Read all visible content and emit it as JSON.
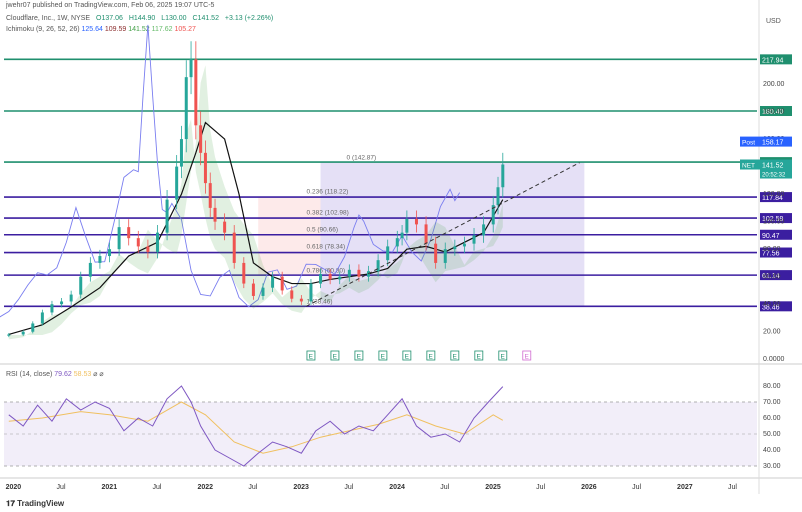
{
  "header": {
    "publisher": "jwehr07 published on TradingView.com, Feb 06, 2025 19:07 UTC-5",
    "symbol": "Cloudflare, Inc., 1W, NYSE",
    "ohlc": [
      "O137.06",
      "H144.90",
      "L130.00",
      "C141.52",
      "+3.13 (+2.26%)"
    ],
    "ichimoku_label": "Ichimoku (9, 26, 52, 26)",
    "ichimoku_values": [
      "125.64",
      "109.59",
      "141.52",
      "117.62",
      "105.27"
    ],
    "rsi_label": "RSI (14, close)",
    "rsi_values": [
      "79.62",
      "58.53",
      "⌀",
      "⌀"
    ],
    "currency": "USD",
    "brand": "TradingView"
  },
  "colors": {
    "up": "#26a69a",
    "down": "#ef5350",
    "purple": "#3b1ea0",
    "teal": "#1f8f6e",
    "black": "#111111",
    "lagging": "#7a7ef0",
    "rsi_line": "#7e57c2",
    "rsi_ma": "#f0c060",
    "post": "#2962ff",
    "net": "#26a69a"
  },
  "chart_data": [
    {
      "type": "line",
      "title": "Cloudflare, Inc., 1W, NYSE",
      "ylabel": "USD",
      "x_ticks": [
        "2020",
        "Jul",
        "2021",
        "Jul",
        "2022",
        "Jul",
        "2023",
        "Jul",
        "2024",
        "Jul",
        "2025",
        "Jul",
        "2026",
        "Jul",
        "2027",
        "Jul"
      ],
      "y_ticks": [
        0,
        20,
        40,
        60,
        80,
        100,
        120,
        140,
        160,
        180,
        200
      ],
      "y_tick_labels": [
        "0.0000",
        "20.00",
        "40.00",
        "60.00",
        "80.00",
        "100.00",
        "120.00",
        "140.00",
        "160.00",
        "180.00",
        "200.00"
      ],
      "ylim": [
        -2,
        232
      ],
      "xlim": [
        2019.9,
        2027.75
      ],
      "series": [
        {
          "kind": "close",
          "x": [
            2019.95,
            2020.1,
            2020.2,
            2020.3,
            2020.4,
            2020.5,
            2020.6,
            2020.7,
            2020.8,
            2020.9,
            2021.0,
            2021.1,
            2021.2,
            2021.3,
            2021.4,
            2021.5,
            2021.6,
            2021.7,
            2021.75,
            2021.8,
            2021.85,
            2021.9,
            2021.95,
            2022.0,
            2022.05,
            2022.1,
            2022.2,
            2022.3,
            2022.4,
            2022.5,
            2022.6,
            2022.7,
            2022.8,
            2022.9,
            2023.0,
            2023.1,
            2023.2,
            2023.3,
            2023.4,
            2023.5,
            2023.6,
            2023.7,
            2023.8,
            2023.9,
            2024.0,
            2024.05,
            2024.1,
            2024.2,
            2024.3,
            2024.4,
            2024.5,
            2024.6,
            2024.7,
            2024.8,
            2024.9,
            2025.0,
            2025.05,
            2025.1
          ],
          "values": [
            18,
            20,
            26,
            34,
            40,
            42,
            47,
            60,
            70,
            75,
            80,
            96,
            88,
            82,
            78,
            92,
            116,
            140,
            160,
            205,
            218,
            170,
            150,
            128,
            110,
            100,
            92,
            70,
            55,
            46,
            52,
            60,
            50,
            44,
            42,
            55,
            62,
            58,
            60,
            65,
            60,
            64,
            72,
            82,
            88,
            92,
            102,
            98,
            84,
            70,
            80,
            82,
            84,
            90,
            98,
            112,
            125,
            141.52
          ]
        },
        {
          "kind": "ichimoku-baseline",
          "x": [
            2019.95,
            2020.3,
            2020.6,
            2020.9,
            2021.2,
            2021.5,
            2021.75,
            2021.9,
            2022.0,
            2022.2,
            2022.35,
            2022.5,
            2022.7,
            2022.9,
            2023.1,
            2023.3,
            2023.5,
            2023.7,
            2023.9,
            2024.1,
            2024.3,
            2024.5,
            2024.7,
            2024.9,
            2025.1
          ],
          "values": [
            18,
            25,
            38,
            52,
            75,
            85,
            120,
            150,
            172,
            160,
            120,
            70,
            60,
            55,
            55,
            58,
            60,
            62,
            66,
            80,
            82,
            78,
            85,
            92,
            116
          ]
        }
      ],
      "horizontal_levels": [
        {
          "value": 217.94,
          "label": "217.94",
          "color": "teal"
        },
        {
          "value": 180.4,
          "label": "180.40",
          "color": "teal"
        },
        {
          "value": 143.26,
          "label": "143.26",
          "color": "teal"
        },
        {
          "value": 117.84,
          "label": "117.84",
          "color": "purple"
        },
        {
          "value": 102.59,
          "label": "102.59",
          "color": "purple"
        },
        {
          "value": 90.47,
          "label": "90.47",
          "color": "purple"
        },
        {
          "value": 77.56,
          "label": "77.56",
          "color": "purple"
        },
        {
          "value": 61.14,
          "label": "61.14",
          "color": "purple"
        },
        {
          "value": 38.46,
          "label": "38.46",
          "color": "purple"
        }
      ],
      "fibonacci": {
        "x_start": 2023.2,
        "x_end": 2025.95,
        "levels": [
          {
            "label": "0 (142.87)",
            "value": 142.87
          },
          {
            "label": "0.236 (118.22)",
            "value": 118.22
          },
          {
            "label": "0.382 (102.98)",
            "value": 102.98
          },
          {
            "label": "0.5 (90.66)",
            "value": 90.66
          },
          {
            "label": "0.618 (78.34)",
            "value": 78.34
          },
          {
            "label": "0.786 (60.80)",
            "value": 60.8
          },
          {
            "label": "1 (38.46)",
            "value": 38.46
          }
        ]
      },
      "trendline": {
        "x": [
          2023.05,
          2025.9
        ],
        "values": [
          38.46,
          142.87
        ]
      },
      "price_labels": [
        {
          "tag": "Post",
          "value": "158.17",
          "at": 158.17
        },
        {
          "tag": "NET",
          "value": "141.52",
          "at": 141.52,
          "extra": "20:52:32"
        }
      ],
      "earnings_markers": [
        "E",
        "E",
        "E",
        "E",
        "E",
        "E",
        "E",
        "E",
        "E",
        "E"
      ],
      "earnings_x": [
        2023.1,
        2023.35,
        2023.6,
        2023.85,
        2024.1,
        2024.35,
        2024.6,
        2024.85,
        2025.1,
        2025.35
      ]
    },
    {
      "type": "line",
      "title": "RSI (14, close)",
      "y_ticks": [
        30,
        40,
        50,
        60,
        70,
        80
      ],
      "y_tick_labels": [
        "30.00",
        "40.00",
        "50.00",
        "60.00",
        "70.00",
        "80.00"
      ],
      "ylim": [
        25,
        85
      ],
      "band": [
        30,
        70
      ],
      "series": [
        {
          "name": "RSI",
          "x": [
            2019.95,
            2020.1,
            2020.25,
            2020.4,
            2020.55,
            2020.7,
            2020.85,
            2021.0,
            2021.15,
            2021.3,
            2021.45,
            2021.6,
            2021.75,
            2021.85,
            2021.95,
            2022.1,
            2022.25,
            2022.4,
            2022.55,
            2022.7,
            2022.85,
            2023.0,
            2023.15,
            2023.3,
            2023.45,
            2023.6,
            2023.75,
            2023.9,
            2024.05,
            2024.2,
            2024.35,
            2024.5,
            2024.65,
            2024.8,
            2024.95,
            2025.1
          ],
          "values": [
            62,
            55,
            68,
            58,
            72,
            65,
            70,
            66,
            52,
            60,
            55,
            72,
            80,
            70,
            55,
            40,
            35,
            30,
            38,
            45,
            42,
            38,
            52,
            58,
            50,
            55,
            52,
            62,
            72,
            55,
            48,
            50,
            45,
            60,
            70,
            79.62
          ]
        },
        {
          "name": "RSI-based MA",
          "x": [
            2019.95,
            2020.3,
            2020.7,
            2021.0,
            2021.4,
            2021.75,
            2022.0,
            2022.3,
            2022.6,
            2022.9,
            2023.2,
            2023.5,
            2023.8,
            2024.1,
            2024.4,
            2024.7,
            2025.0,
            2025.1
          ],
          "values": [
            58,
            60,
            64,
            62,
            58,
            70,
            62,
            45,
            38,
            42,
            48,
            52,
            56,
            62,
            55,
            50,
            62,
            58.53
          ]
        }
      ]
    }
  ]
}
